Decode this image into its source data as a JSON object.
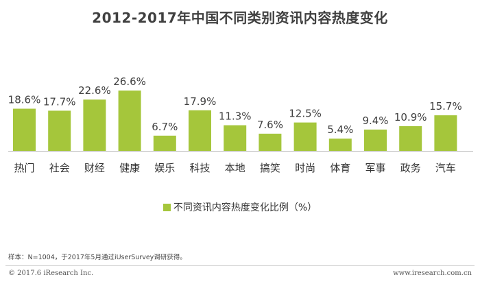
{
  "chart_data": {
    "type": "bar",
    "title": "2012-2017年中国不同类别资讯内容热度变化",
    "categories": [
      "热门",
      "社会",
      "财经",
      "健康",
      "娱乐",
      "科技",
      "本地",
      "搞笑",
      "时尚",
      "体育",
      "军事",
      "政务",
      "汽车"
    ],
    "series": [
      {
        "name": "不同资讯内容热度变化比例（%）",
        "values": [
          18.6,
          17.7,
          22.6,
          26.6,
          6.7,
          17.9,
          11.3,
          7.6,
          12.5,
          5.4,
          9.4,
          10.9,
          15.7
        ]
      }
    ],
    "value_labels": [
      "18.6%",
      "17.7%",
      "22.6%",
      "26.6%",
      "6.7%",
      "17.9%",
      "11.3%",
      "7.6%",
      "12.5%",
      "5.4%",
      "9.4%",
      "10.9%",
      "15.7%"
    ],
    "ylim": [
      0,
      26.6
    ],
    "grid": false,
    "legend_position": "bottom-center",
    "bar_color": "#a5c63b",
    "axis_color": "#bfbfbf"
  },
  "footnote": "样本：N=1004，于2017年5月通过iUserSurvey调研获得。",
  "copyright": "© 2017.6 iResearch Inc.",
  "website": "www.iresearch.com.cn"
}
